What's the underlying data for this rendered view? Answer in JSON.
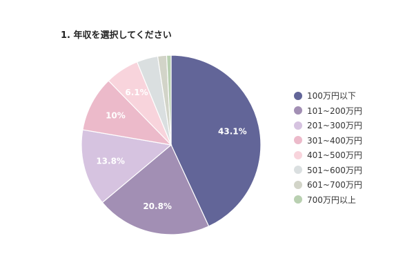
{
  "chart_data": {
    "type": "pie",
    "title": "1. 年収を選択してください",
    "categories": [
      "100万円以下",
      "101~200万円",
      "201~300万円",
      "301~400万円",
      "401~500万円",
      "501~600万円",
      "601~700万円",
      "700万円以上"
    ],
    "values": [
      43.1,
      20.8,
      13.8,
      10,
      6.1,
      3.8,
      1.6,
      0.8
    ],
    "value_labels": [
      "43.1%",
      "20.8%",
      "13.8%",
      "10%",
      "6.1%",
      "",
      "",
      ""
    ],
    "colors": [
      "#626598",
      "#a28fb4",
      "#d6c3e0",
      "#ecbaca",
      "#f8d4dc",
      "#dadfe0",
      "#d2d4c8",
      "#b9d0b1"
    ],
    "legend_position": "right",
    "grid": false
  }
}
